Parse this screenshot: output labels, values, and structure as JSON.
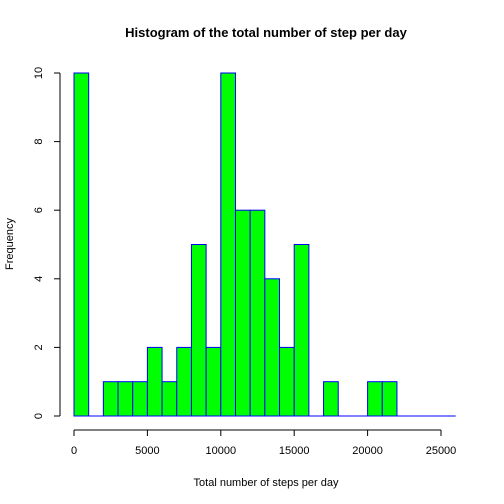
{
  "chart_data": {
    "type": "bar",
    "title": "Histogram of the total number of step per day",
    "xlabel": "Total number of steps per day",
    "ylabel": "Frequency",
    "bin_width": 1000,
    "bins": [
      {
        "x0": 0,
        "x1": 1000,
        "count": 10
      },
      {
        "x0": 1000,
        "x1": 2000,
        "count": 0
      },
      {
        "x0": 2000,
        "x1": 3000,
        "count": 1
      },
      {
        "x0": 3000,
        "x1": 4000,
        "count": 1
      },
      {
        "x0": 4000,
        "x1": 5000,
        "count": 1
      },
      {
        "x0": 5000,
        "x1": 6000,
        "count": 2
      },
      {
        "x0": 6000,
        "x1": 7000,
        "count": 1
      },
      {
        "x0": 7000,
        "x1": 8000,
        "count": 2
      },
      {
        "x0": 8000,
        "x1": 9000,
        "count": 5
      },
      {
        "x0": 9000,
        "x1": 10000,
        "count": 2
      },
      {
        "x0": 10000,
        "x1": 11000,
        "count": 10
      },
      {
        "x0": 11000,
        "x1": 12000,
        "count": 6
      },
      {
        "x0": 12000,
        "x1": 13000,
        "count": 6
      },
      {
        "x0": 13000,
        "x1": 14000,
        "count": 4
      },
      {
        "x0": 14000,
        "x1": 15000,
        "count": 2
      },
      {
        "x0": 15000,
        "x1": 16000,
        "count": 5
      },
      {
        "x0": 16000,
        "x1": 17000,
        "count": 0
      },
      {
        "x0": 17000,
        "x1": 18000,
        "count": 1
      },
      {
        "x0": 18000,
        "x1": 19000,
        "count": 0
      },
      {
        "x0": 19000,
        "x1": 20000,
        "count": 0
      },
      {
        "x0": 20000,
        "x1": 21000,
        "count": 1
      },
      {
        "x0": 21000,
        "x1": 22000,
        "count": 1
      },
      {
        "x0": 22000,
        "x1": 23000,
        "count": 0
      },
      {
        "x0": 23000,
        "x1": 24000,
        "count": 0
      },
      {
        "x0": 24000,
        "x1": 25000,
        "count": 0
      },
      {
        "x0": 25000,
        "x1": 26000,
        "count": 0
      }
    ],
    "xlim": [
      0,
      26000
    ],
    "ylim": [
      0,
      10
    ],
    "xticks": [
      0,
      5000,
      10000,
      15000,
      20000,
      25000
    ],
    "yticks": [
      0,
      2,
      4,
      6,
      8,
      10
    ],
    "colors": {
      "fill": "#00ff00",
      "border": "#0000ff",
      "axis": "#000000"
    },
    "grid": false
  }
}
